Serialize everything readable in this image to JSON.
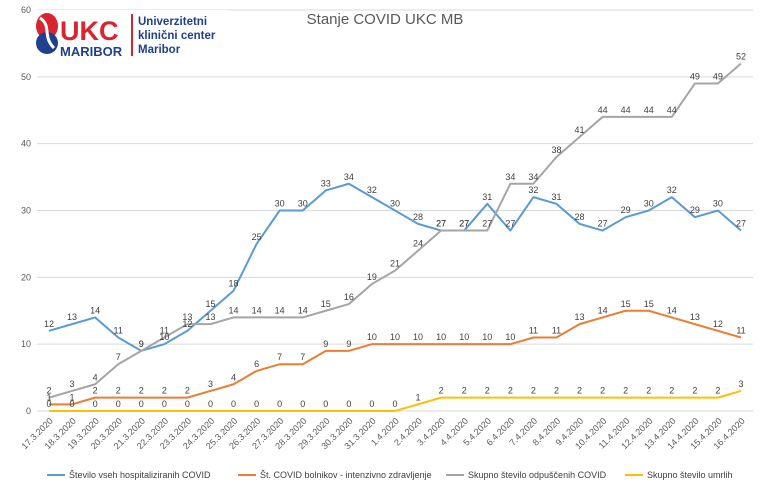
{
  "logo": {
    "ukc": "UKC",
    "maribor": "MARIBOR",
    "line1": "Univerzitetni",
    "line2": "klinični center",
    "line3": "Maribor"
  },
  "colors": {
    "hospitalized": "#5B9BD5",
    "intensive": "#ED7D31",
    "released": "#A5A5A5",
    "deaths": "#FFC000",
    "logo_red": "#D9252F",
    "logo_blue": "#1F3F8F"
  },
  "chart_data": {
    "type": "line",
    "title": "Stanje COVID UKC MB",
    "xlabel": "",
    "ylabel": "",
    "ylim": [
      0,
      60
    ],
    "yticks": [
      0,
      10,
      20,
      30,
      40,
      50,
      60
    ],
    "grid": true,
    "legend_position": "bottom",
    "categories": [
      "17.3.2020",
      "18.3.2020",
      "19.3.2020",
      "20.3.2020",
      "21.3.2020",
      "22.3.2020",
      "23.3.2020",
      "24.3.2020",
      "25.3.2020",
      "26.3.2020",
      "27.3.2020",
      "28.3.2020",
      "29.3.2020",
      "30.3.2020",
      "31.3.2020",
      "1.4.2020",
      "2.4.2020",
      "3.4.2020",
      "4.4.2020",
      "5.4.2020",
      "6.4.2020",
      "7.4.2020",
      "8.4.2020",
      "9.4.2020",
      "10.4.2020",
      "11.4.2020",
      "12.4.2020",
      "13.4.2020",
      "14.4.2020",
      "15.4.2020",
      "16.4.2020"
    ],
    "series": [
      {
        "name": "Število vseh hospitaliziranih COVID",
        "color": "#5B9BD5",
        "values": [
          12,
          13,
          14,
          11,
          9,
          10,
          12,
          15,
          18,
          25,
          30,
          30,
          33,
          34,
          32,
          30,
          28,
          27,
          27,
          31,
          27,
          32,
          31,
          28,
          27,
          29,
          30,
          32,
          29,
          30,
          27
        ]
      },
      {
        "name": "Št. COVID bolnikov - intenzivno zdravljenje",
        "color": "#ED7D31",
        "values": [
          1,
          1,
          2,
          2,
          2,
          2,
          2,
          3,
          4,
          6,
          7,
          7,
          9,
          9,
          10,
          10,
          10,
          10,
          10,
          10,
          10,
          11,
          11,
          13,
          14,
          15,
          15,
          14,
          13,
          12,
          11
        ]
      },
      {
        "name": "Skupno število odpuščenih COVID",
        "color": "#A5A5A5",
        "values": [
          2,
          3,
          4,
          7,
          9,
          11,
          13,
          13,
          14,
          14,
          14,
          14,
          15,
          16,
          19,
          21,
          24,
          27,
          27,
          27,
          34,
          34,
          38,
          41,
          44,
          44,
          44,
          44,
          49,
          49,
          52
        ]
      },
      {
        "name": "Skupno število umrlih",
        "color": "#FFC000",
        "values": [
          0,
          0,
          0,
          0,
          0,
          0,
          0,
          0,
          0,
          0,
          0,
          0,
          0,
          0,
          0,
          0,
          1,
          2,
          2,
          2,
          2,
          2,
          2,
          2,
          2,
          2,
          2,
          2,
          2,
          2,
          3
        ]
      }
    ]
  }
}
